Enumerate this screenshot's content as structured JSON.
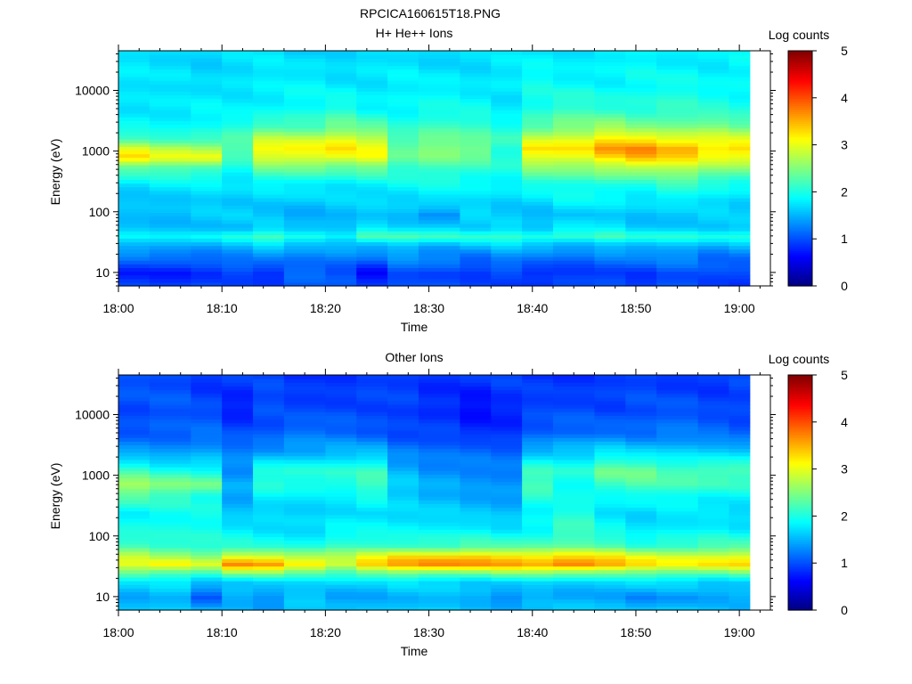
{
  "figure_title": "RPCICA160615T18.PNG",
  "chart_data": [
    {
      "type": "heatmap",
      "title": "H+ He++ Ions",
      "xlabel": "Time",
      "ylabel": "Energy (eV)",
      "x_ticks": [
        "18:00",
        "18:10",
        "18:20",
        "18:30",
        "18:40",
        "18:50",
        "19:00"
      ],
      "xlim": [
        "18:00",
        "19:03"
      ],
      "y_scale": "log",
      "ylim": [
        6,
        45000
      ],
      "y_ticks": [
        {
          "value": 10,
          "label": "10"
        },
        {
          "value": 100,
          "label": "100"
        },
        {
          "value": 1000,
          "label": "1000"
        },
        {
          "value": 10000,
          "label": "10000"
        }
      ],
      "colorbar": {
        "label": "Log counts",
        "range": [
          0,
          5
        ],
        "ticks": [
          "0",
          "1",
          "2",
          "3",
          "4",
          "5"
        ]
      },
      "time_bins": [
        "18:00",
        "18:03",
        "18:07",
        "18:10",
        "18:13",
        "18:16",
        "18:20",
        "18:23",
        "18:26",
        "18:29",
        "18:33",
        "18:36",
        "18:39",
        "18:42",
        "18:46",
        "18:49",
        "18:52",
        "18:56",
        "18:59"
      ],
      "data_end": "19:01",
      "energy_profiles": [
        {
          "energy": 6,
          "values": [
            1.0,
            0.9,
            0.95,
            1.0,
            1.0,
            1.05,
            1.0,
            0.9,
            1.0,
            1.0,
            1.0,
            1.0,
            0.9,
            0.9,
            1.0,
            0.9,
            1.0,
            0.9,
            0.95
          ]
        },
        {
          "energy": 10,
          "values": [
            0.8,
            0.7,
            0.8,
            1.0,
            0.8,
            1.05,
            1.0,
            0.7,
            1.0,
            0.9,
            0.9,
            1.0,
            0.75,
            0.85,
            1.0,
            0.9,
            0.95,
            1.0,
            1.0
          ]
        },
        {
          "energy": 18,
          "values": [
            1.2,
            1.1,
            1.2,
            1.3,
            1.3,
            1.2,
            1.3,
            1.2,
            1.3,
            1.3,
            1.2,
            1.3,
            1.2,
            1.2,
            1.3,
            1.2,
            1.3,
            1.2,
            1.2
          ]
        },
        {
          "energy": 28,
          "values": [
            1.5,
            1.5,
            1.5,
            1.5,
            1.6,
            1.5,
            1.6,
            1.5,
            1.6,
            1.5,
            1.6,
            1.6,
            1.5,
            1.5,
            1.6,
            1.5,
            1.6,
            1.5,
            1.5
          ]
        },
        {
          "energy": 40,
          "values": [
            1.8,
            1.8,
            1.9,
            2.0,
            2.2,
            2.1,
            1.9,
            2.2,
            2.2,
            2.2,
            2.1,
            2.1,
            2.1,
            2.2,
            2.2,
            2.0,
            2.1,
            2.0,
            2.0
          ]
        },
        {
          "energy": 55,
          "values": [
            1.5,
            1.6,
            1.6,
            1.5,
            1.7,
            1.6,
            1.5,
            1.7,
            1.7,
            1.8,
            1.6,
            1.7,
            1.6,
            1.8,
            1.7,
            1.6,
            1.7,
            1.6,
            1.6
          ]
        },
        {
          "energy": 90,
          "values": [
            1.6,
            1.6,
            1.6,
            1.6,
            1.6,
            1.5,
            1.5,
            1.6,
            1.6,
            1.3,
            1.6,
            1.6,
            1.6,
            1.6,
            1.6,
            1.6,
            1.6,
            1.6,
            1.6
          ]
        },
        {
          "energy": 150,
          "values": [
            1.6,
            1.6,
            1.6,
            1.6,
            1.7,
            1.6,
            1.6,
            1.7,
            1.7,
            1.7,
            1.7,
            1.7,
            1.7,
            1.8,
            1.8,
            1.8,
            1.8,
            1.7,
            1.7
          ]
        },
        {
          "energy": 300,
          "values": [
            1.8,
            1.8,
            1.8,
            1.8,
            1.9,
            1.8,
            1.8,
            1.9,
            1.9,
            1.9,
            1.9,
            1.9,
            2.0,
            2.0,
            2.1,
            2.0,
            2.1,
            2.0,
            2.0
          ]
        },
        {
          "energy": 550,
          "values": [
            2.4,
            2.3,
            2.3,
            2.0,
            2.4,
            2.4,
            2.4,
            2.5,
            2.1,
            2.2,
            2.2,
            2.0,
            2.5,
            2.6,
            2.8,
            2.8,
            2.8,
            2.7,
            2.6
          ]
        },
        {
          "energy": 800,
          "values": [
            3.3,
            3.0,
            3.1,
            2.2,
            2.9,
            3.0,
            3.1,
            3.1,
            2.3,
            2.5,
            2.4,
            2.0,
            3.0,
            3.1,
            3.3,
            3.4,
            3.3,
            3.1,
            3.0
          ]
        },
        {
          "energy": 1100,
          "values": [
            2.9,
            2.8,
            2.8,
            2.3,
            3.1,
            3.2,
            3.3,
            3.0,
            2.3,
            2.6,
            2.5,
            2.0,
            3.3,
            3.3,
            3.6,
            3.7,
            3.6,
            3.3,
            3.3
          ]
        },
        {
          "energy": 1600,
          "values": [
            2.2,
            2.2,
            2.2,
            2.2,
            2.8,
            2.9,
            3.0,
            2.8,
            2.3,
            2.5,
            2.3,
            2.1,
            2.9,
            3.0,
            3.2,
            3.2,
            3.1,
            3.0,
            2.9
          ]
        },
        {
          "energy": 2500,
          "values": [
            1.9,
            1.9,
            1.9,
            2.0,
            2.3,
            2.3,
            2.4,
            2.3,
            2.1,
            2.2,
            2.1,
            2.0,
            2.4,
            2.5,
            2.6,
            2.5,
            2.5,
            2.5,
            2.4
          ]
        },
        {
          "energy": 5000,
          "values": [
            1.8,
            1.8,
            1.8,
            1.8,
            1.9,
            1.9,
            2.0,
            1.9,
            1.9,
            1.9,
            1.9,
            1.8,
            2.0,
            2.1,
            2.1,
            2.1,
            2.1,
            2.0,
            2.0
          ]
        },
        {
          "energy": 12000,
          "values": [
            1.8,
            1.7,
            1.7,
            1.8,
            1.8,
            1.8,
            1.8,
            1.8,
            1.8,
            1.8,
            1.8,
            1.8,
            1.9,
            1.9,
            1.9,
            1.9,
            1.9,
            1.9,
            1.9
          ]
        },
        {
          "energy": 45000,
          "values": [
            1.7,
            1.7,
            1.7,
            1.7,
            1.7,
            1.7,
            1.7,
            1.7,
            1.7,
            1.7,
            1.7,
            1.7,
            1.8,
            1.8,
            1.8,
            1.8,
            1.8,
            1.8,
            1.8
          ]
        }
      ]
    },
    {
      "type": "heatmap",
      "title": "Other Ions",
      "xlabel": "Time",
      "ylabel": "Energy (eV)",
      "x_ticks": [
        "18:00",
        "18:10",
        "18:20",
        "18:30",
        "18:40",
        "18:50",
        "19:00"
      ],
      "xlim": [
        "18:00",
        "19:03"
      ],
      "y_scale": "log",
      "ylim": [
        6,
        45000
      ],
      "y_ticks": [
        {
          "value": 10,
          "label": "10"
        },
        {
          "value": 100,
          "label": "100"
        },
        {
          "value": 1000,
          "label": "1000"
        },
        {
          "value": 10000,
          "label": "10000"
        }
      ],
      "colorbar": {
        "label": "Log counts",
        "range": [
          0,
          5
        ],
        "ticks": [
          "0",
          "1",
          "2",
          "3",
          "4",
          "5"
        ]
      },
      "time_bins": [
        "18:00",
        "18:03",
        "18:07",
        "18:10",
        "18:13",
        "18:16",
        "18:20",
        "18:23",
        "18:26",
        "18:29",
        "18:33",
        "18:36",
        "18:39",
        "18:42",
        "18:46",
        "18:49",
        "18:52",
        "18:56",
        "18:59"
      ],
      "data_end": "19:01",
      "energy_profiles": [
        {
          "energy": 6,
          "values": [
            1.6,
            1.6,
            1.5,
            1.6,
            1.5,
            1.6,
            1.5,
            1.6,
            1.6,
            1.6,
            1.6,
            1.6,
            1.6,
            1.6,
            1.6,
            1.6,
            1.6,
            1.6,
            1.6
          ]
        },
        {
          "energy": 10,
          "values": [
            1.5,
            1.5,
            1.0,
            1.5,
            1.3,
            1.5,
            1.4,
            1.5,
            1.5,
            1.5,
            1.5,
            1.3,
            1.4,
            1.4,
            1.5,
            1.3,
            1.3,
            1.4,
            1.5
          ]
        },
        {
          "energy": 18,
          "values": [
            1.7,
            1.7,
            1.6,
            1.7,
            1.7,
            1.7,
            1.8,
            1.7,
            1.7,
            1.7,
            1.7,
            1.7,
            1.7,
            1.7,
            1.7,
            1.7,
            1.7,
            1.7,
            1.7
          ]
        },
        {
          "energy": 25,
          "values": [
            2.4,
            2.3,
            2.3,
            2.6,
            2.5,
            2.3,
            2.2,
            2.4,
            2.5,
            2.5,
            2.5,
            2.5,
            2.5,
            2.5,
            2.5,
            2.4,
            2.4,
            2.4,
            2.4
          ]
        },
        {
          "energy": 35,
          "values": [
            3.0,
            3.2,
            3.0,
            3.7,
            3.6,
            3.3,
            3.0,
            3.4,
            3.6,
            3.8,
            3.7,
            3.6,
            3.6,
            3.9,
            3.6,
            3.3,
            3.2,
            3.3,
            3.3
          ]
        },
        {
          "energy": 45,
          "values": [
            2.8,
            2.7,
            2.6,
            3.0,
            3.0,
            2.9,
            2.8,
            3.0,
            3.3,
            3.4,
            3.4,
            3.3,
            3.3,
            3.4,
            3.2,
            3.0,
            3.0,
            3.0,
            3.0
          ]
        },
        {
          "energy": 70,
          "values": [
            2.2,
            2.2,
            2.1,
            2.0,
            2.0,
            2.0,
            2.1,
            2.1,
            2.2,
            2.2,
            2.2,
            2.2,
            2.3,
            2.3,
            2.2,
            2.1,
            2.2,
            2.2,
            2.2
          ]
        },
        {
          "energy": 130,
          "values": [
            2.0,
            2.0,
            1.9,
            1.8,
            1.8,
            1.7,
            1.8,
            1.9,
            1.9,
            1.8,
            1.8,
            1.8,
            1.9,
            2.1,
            1.9,
            1.8,
            1.8,
            1.8,
            1.8
          ]
        },
        {
          "energy": 250,
          "values": [
            1.9,
            1.9,
            1.9,
            1.6,
            1.7,
            1.6,
            1.7,
            1.8,
            1.7,
            1.6,
            1.6,
            1.6,
            1.8,
            2.0,
            1.8,
            1.7,
            1.7,
            1.7,
            1.7
          ]
        },
        {
          "energy": 450,
          "values": [
            2.3,
            2.1,
            2.0,
            1.5,
            1.8,
            1.7,
            1.8,
            2.0,
            1.6,
            1.5,
            1.5,
            1.4,
            2.0,
            1.9,
            1.9,
            1.9,
            1.9,
            1.9,
            1.9
          ]
        },
        {
          "energy": 700,
          "values": [
            2.7,
            2.5,
            2.5,
            1.5,
            2.0,
            2.0,
            2.1,
            2.2,
            1.6,
            1.5,
            1.4,
            1.3,
            2.2,
            2.0,
            2.2,
            2.2,
            2.2,
            2.2,
            2.1
          ]
        },
        {
          "energy": 1200,
          "values": [
            2.1,
            2.0,
            2.0,
            1.3,
            2.0,
            2.1,
            2.1,
            2.1,
            1.5,
            1.4,
            1.3,
            1.2,
            2.2,
            2.1,
            2.4,
            2.4,
            2.3,
            2.3,
            2.2
          ]
        },
        {
          "energy": 2500,
          "values": [
            1.4,
            1.4,
            1.4,
            1.2,
            1.4,
            1.5,
            1.5,
            1.5,
            1.3,
            1.2,
            1.1,
            1.1,
            1.6,
            1.6,
            1.7,
            1.7,
            1.7,
            1.6,
            1.6
          ]
        },
        {
          "energy": 5000,
          "values": [
            1.1,
            1.1,
            1.1,
            1.0,
            1.1,
            1.2,
            1.1,
            1.1,
            1.0,
            0.9,
            0.8,
            0.9,
            1.1,
            1.1,
            1.2,
            1.2,
            1.2,
            1.1,
            1.1
          ]
        },
        {
          "energy": 12000,
          "values": [
            1.0,
            1.0,
            1.0,
            0.8,
            1.0,
            0.9,
            1.0,
            1.0,
            0.9,
            0.8,
            0.7,
            0.8,
            0.9,
            1.0,
            1.0,
            1.0,
            1.0,
            1.0,
            1.0
          ]
        },
        {
          "energy": 45000,
          "values": [
            1.0,
            1.0,
            0.9,
            0.9,
            0.9,
            0.9,
            0.9,
            0.9,
            0.9,
            0.9,
            0.9,
            0.9,
            0.9,
            0.9,
            0.9,
            0.9,
            0.9,
            0.9,
            0.9
          ]
        }
      ]
    }
  ]
}
